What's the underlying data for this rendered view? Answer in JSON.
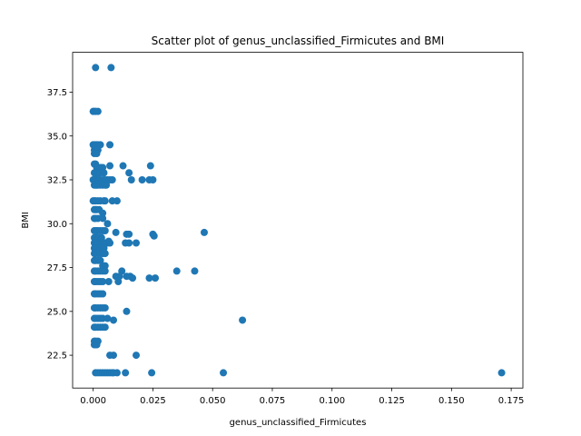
{
  "chart_data": {
    "type": "scatter",
    "title": "Scatter plot of genus_unclassified_Firmicutes and BMI",
    "xlabel": "genus_unclassified_Firmicutes",
    "ylabel": "BMI",
    "xlim": [
      -0.0086,
      0.1799
    ],
    "ylim": [
      20.63,
      39.77
    ],
    "x_ticks": [
      0.0,
      0.025,
      0.05,
      0.075,
      0.1,
      0.125,
      0.15,
      0.175
    ],
    "x_tick_labels": [
      "0.000",
      "0.025",
      "0.050",
      "0.075",
      "0.100",
      "0.125",
      "0.150",
      "0.175"
    ],
    "y_ticks": [
      22.5,
      25.0,
      27.5,
      30.0,
      32.5,
      35.0,
      37.5
    ],
    "y_tick_labels": [
      "22.5",
      "25.0",
      "27.5",
      "30.0",
      "32.5",
      "35.0",
      "37.5"
    ],
    "grid": false,
    "marker_color": "#1f77b4",
    "series": [
      {
        "x": [
          0.001,
          0.0075,
          0.0,
          0.0005,
          0.001,
          0.002,
          0.0,
          0.0005,
          0.001,
          0.0015,
          0.002,
          0.003,
          0.0005,
          0.001,
          0.002,
          0.0005,
          0.0015,
          0.007,
          0.0005,
          0.001,
          0.0015,
          0.002,
          0.003,
          0.0035,
          0.004,
          0.007,
          0.0125,
          0.024,
          0.0005,
          0.001,
          0.002,
          0.003,
          0.0045,
          0.015,
          0.0,
          0.0005,
          0.001,
          0.0015,
          0.002,
          0.0025,
          0.003,
          0.004,
          0.005,
          0.006,
          0.007,
          0.008,
          0.016,
          0.0205,
          0.0235,
          0.025,
          0.0005,
          0.001,
          0.0015,
          0.002,
          0.003,
          0.004,
          0.005,
          0.0055,
          0.0,
          0.0005,
          0.001,
          0.002,
          0.003,
          0.0045,
          0.005,
          0.008,
          0.01,
          0.0005,
          0.001,
          0.0015,
          0.0025,
          0.004,
          0.0005,
          0.001,
          0.002,
          0.004,
          0.006,
          0.0005,
          0.001,
          0.0015,
          0.002,
          0.003,
          0.004,
          0.005,
          0.0095,
          0.014,
          0.015,
          0.025,
          0.0465,
          0.0005,
          0.0015,
          0.0025,
          0.0035,
          0.0065,
          0.0005,
          0.001,
          0.002,
          0.003,
          0.004,
          0.005,
          0.006,
          0.007,
          0.0135,
          0.015,
          0.018,
          0.0255,
          0.0005,
          0.001,
          0.002,
          0.003,
          0.0045,
          0.0005,
          0.001,
          0.002,
          0.003,
          0.004,
          0.005,
          0.0005,
          0.001,
          0.002,
          0.003,
          0.004,
          0.005,
          0.012,
          0.035,
          0.0425,
          0.0005,
          0.001,
          0.002,
          0.003,
          0.004,
          0.005,
          0.0095,
          0.011,
          0.014,
          0.0155,
          0.0165,
          0.0235,
          0.026,
          0.0005,
          0.001,
          0.002,
          0.003,
          0.004,
          0.0065,
          0.0105,
          0.0005,
          0.001,
          0.002,
          0.003,
          0.004,
          0.0005,
          0.001,
          0.002,
          0.003,
          0.004,
          0.005,
          0.014,
          0.0005,
          0.001,
          0.002,
          0.003,
          0.004,
          0.006,
          0.0085,
          0.0625,
          0.0005,
          0.001,
          0.002,
          0.003,
          0.004,
          0.005,
          0.0005,
          0.001,
          0.002,
          0.0005,
          0.001,
          0.0015,
          0.007,
          0.0085,
          0.018,
          0.001,
          0.002,
          0.003,
          0.004,
          0.005,
          0.006,
          0.007,
          0.008,
          0.0085,
          0.01,
          0.0135,
          0.0245,
          0.0545,
          0.171
        ],
        "y": [
          38.9,
          38.9,
          36.4,
          36.4,
          36.4,
          36.4,
          34.5,
          34.5,
          34.5,
          34.5,
          34.5,
          34.5,
          34.2,
          34.2,
          34.2,
          34.0,
          34.0,
          34.5,
          33.4,
          33.4,
          33.2,
          33.2,
          33.2,
          33.2,
          33.2,
          33.3,
          33.3,
          33.3,
          32.9,
          32.9,
          32.9,
          32.9,
          32.9,
          32.9,
          32.5,
          32.5,
          32.5,
          32.5,
          32.5,
          32.5,
          32.5,
          32.5,
          32.5,
          32.5,
          32.5,
          32.5,
          32.5,
          32.5,
          32.5,
          32.5,
          32.2,
          32.2,
          32.2,
          32.2,
          32.2,
          32.2,
          32.2,
          32.2,
          31.3,
          31.3,
          31.3,
          31.3,
          31.3,
          31.3,
          31.3,
          31.3,
          31.3,
          30.8,
          30.8,
          30.8,
          30.8,
          30.6,
          30.3,
          30.3,
          30.3,
          30.3,
          30.0,
          29.6,
          29.6,
          29.6,
          29.6,
          29.6,
          29.6,
          29.6,
          29.5,
          29.4,
          29.4,
          29.4,
          29.5,
          29.2,
          29.2,
          29.2,
          29.2,
          29.0,
          28.9,
          28.9,
          28.9,
          28.9,
          28.9,
          28.9,
          28.9,
          28.9,
          28.9,
          28.9,
          28.9,
          29.3,
          28.6,
          28.6,
          28.6,
          28.6,
          28.6,
          28.3,
          28.3,
          28.3,
          28.3,
          28.3,
          28.3,
          27.9,
          27.9,
          27.9,
          27.9,
          27.6,
          27.6,
          27.3,
          27.3,
          27.3,
          27.3,
          27.3,
          27.3,
          27.3,
          27.3,
          27.3,
          27.0,
          27.0,
          27.0,
          27.0,
          26.9,
          26.9,
          26.9,
          26.7,
          26.7,
          26.7,
          26.7,
          26.7,
          26.7,
          26.7,
          26.0,
          26.0,
          26.0,
          26.0,
          26.0,
          25.2,
          25.2,
          25.2,
          25.2,
          25.2,
          25.2,
          25.0,
          24.6,
          24.6,
          24.6,
          24.6,
          24.6,
          24.6,
          24.5,
          24.5,
          24.1,
          24.1,
          24.1,
          24.1,
          24.1,
          24.1,
          23.3,
          23.3,
          23.3,
          23.1,
          23.1,
          23.1,
          22.5,
          22.5,
          22.5,
          21.5,
          21.5,
          21.5,
          21.5,
          21.5,
          21.5,
          21.5,
          21.5,
          21.5,
          21.5,
          21.5,
          21.5,
          21.5,
          21.5
        ]
      }
    ]
  }
}
